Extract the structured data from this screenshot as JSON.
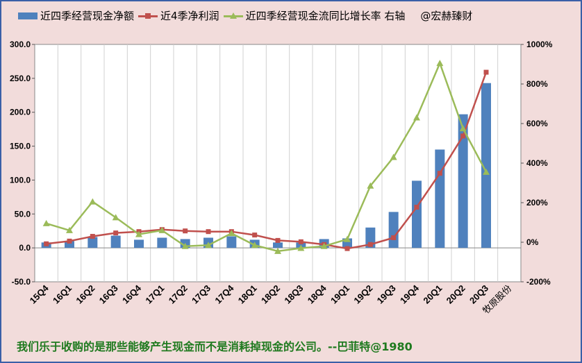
{
  "legend": {
    "bar_label": "近四季经营现金净额",
    "profit_label": "近4季净利润",
    "growth_label": "近四季经营现金流同比增长率 右轴",
    "watermark": "@宏赫臻财"
  },
  "footer": {
    "quote": "我们乐于收购的是那些能够产生现金而不是消耗掉现金的公司。--巴菲特@1980"
  },
  "colors": {
    "bar": "#4f81bd",
    "profit": "#c0504d",
    "growth": "#9bbb59",
    "background": "#f2dcdb"
  },
  "chart_data": {
    "type": "bar",
    "categories": [
      "15Q4",
      "16Q1",
      "16Q2",
      "16Q3",
      "16Q4",
      "17Q1",
      "17Q2",
      "17Q3",
      "17Q4",
      "18Q1",
      "18Q2",
      "18Q3",
      "18Q4",
      "19Q1",
      "19Q2",
      "19Q3",
      "19Q4",
      "20Q1",
      "20Q2",
      "20Q3"
    ],
    "extra_category_label": "牧原股份",
    "series": [
      {
        "name": "近四季经营现金净额",
        "type": "bar",
        "axis": "left",
        "values": [
          8,
          10,
          16,
          18,
          12,
          15,
          13,
          15,
          17,
          12,
          8,
          8,
          13,
          14,
          30,
          53,
          99,
          145,
          197,
          243
        ]
      },
      {
        "name": "近4季净利润",
        "type": "line",
        "marker": "square",
        "axis": "left",
        "values": [
          6,
          10,
          17,
          22,
          24,
          27,
          25,
          24,
          24,
          19,
          11,
          9,
          5,
          -1,
          5,
          15,
          60,
          110,
          165,
          259
        ]
      },
      {
        "name": "近四季经营现金流同比增长率 右轴",
        "type": "line",
        "marker": "triangle",
        "axis": "right",
        "values": [
          95,
          60,
          205,
          125,
          40,
          60,
          -20,
          -15,
          45,
          -15,
          -45,
          -30,
          -20,
          15,
          285,
          430,
          630,
          905,
          575,
          355
        ]
      }
    ],
    "y_left": {
      "min": -50,
      "max": 300,
      "ticks": [
        "-50.0",
        "0.0",
        "50.0",
        "100.0",
        "150.0",
        "200.0",
        "250.0",
        "300.0"
      ]
    },
    "y_right": {
      "min": -200,
      "max": 1000,
      "ticks": [
        "-200%",
        "0%",
        "200%",
        "400%",
        "600%",
        "800%",
        "1000%"
      ]
    },
    "grid": "vertical",
    "legend_position": "top"
  }
}
